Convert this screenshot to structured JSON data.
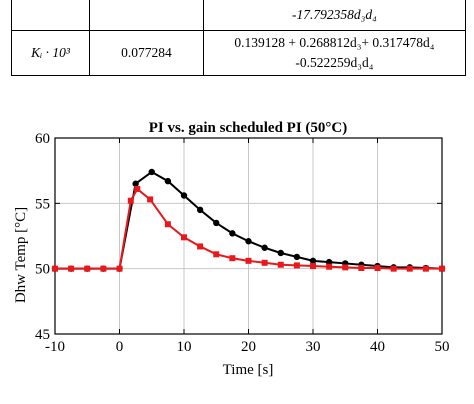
{
  "table": {
    "top_row": {
      "col1": "",
      "col2": "",
      "col3": "-17.792358d₃d₄"
    },
    "ki_row": {
      "param": "Kᵢ · 10³",
      "value": "0.077284",
      "expr_line1": "0.139128 + 0.268812d₃+ 0.317478d₄",
      "expr_line2": "-0.522259d₃d₄"
    }
  },
  "chart_data": {
    "type": "line",
    "title": "PI vs. gain scheduled PI (50°C)",
    "xlabel": "Time [s]",
    "ylabel": "Dhw Temp [°C]",
    "xlim": [
      -10,
      50
    ],
    "ylim": [
      45,
      60
    ],
    "xticks": [
      -10,
      0,
      10,
      20,
      30,
      40,
      50
    ],
    "yticks": [
      45,
      50,
      55,
      60
    ],
    "grid": true,
    "series": [
      {
        "color": "#000000",
        "marker": "circle",
        "x": [
          -10,
          -7.5,
          -5,
          -2.5,
          0,
          2.5,
          5,
          7.5,
          10,
          12.5,
          15,
          17.5,
          20,
          22.5,
          25,
          27.5,
          30,
          32.5,
          35,
          37.5,
          40,
          42.5,
          45,
          47.5,
          50
        ],
        "y": [
          50,
          50,
          50,
          50,
          50,
          56.5,
          57.4,
          56.7,
          55.6,
          54.5,
          53.5,
          52.7,
          52.1,
          51.6,
          51.2,
          50.9,
          50.6,
          50.5,
          50.4,
          50.3,
          50.2,
          50.1,
          50.1,
          50.05,
          50
        ]
      },
      {
        "color": "#e8191c",
        "marker": "square",
        "x": [
          -10,
          -7.5,
          -5,
          -2.5,
          0,
          1.75,
          2.75,
          4.75,
          7.5,
          10,
          12.5,
          15,
          17.5,
          20,
          22.5,
          25,
          27.5,
          30,
          32.5,
          35,
          37.5,
          40,
          42.5,
          45,
          47.5,
          50
        ],
        "y": [
          50,
          50,
          50,
          50,
          50,
          55.2,
          56.1,
          55.3,
          53.4,
          52.4,
          51.7,
          51.1,
          50.8,
          50.6,
          50.45,
          50.3,
          50.25,
          50.2,
          50.15,
          50.1,
          50.05,
          50.05,
          50,
          50,
          50,
          50
        ]
      }
    ]
  }
}
